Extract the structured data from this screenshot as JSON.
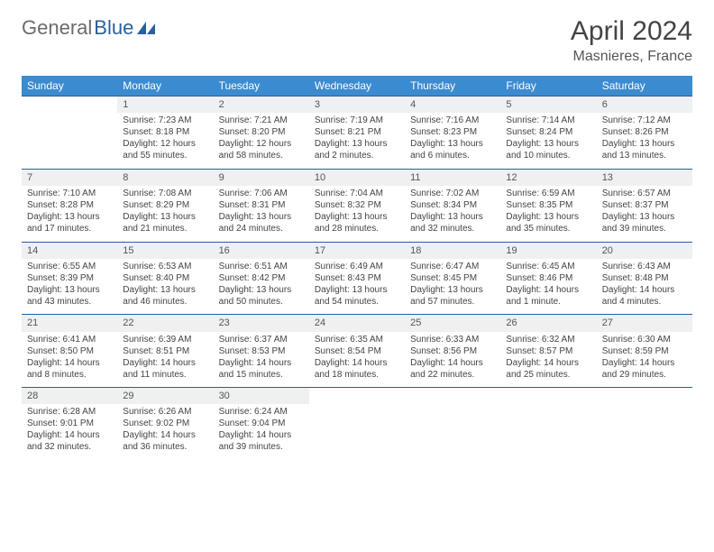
{
  "brand": {
    "part1": "General",
    "part2": "Blue"
  },
  "title": "April 2024",
  "location": "Masnieres, France",
  "colors": {
    "header_bg": "#3b8bd0",
    "header_text": "#ffffff",
    "daynum_bg": "#eef0f2",
    "row_border": "#2a609e",
    "logo_gray": "#6b6b6b",
    "logo_blue": "#2a609e"
  },
  "day_headers": [
    "Sunday",
    "Monday",
    "Tuesday",
    "Wednesday",
    "Thursday",
    "Friday",
    "Saturday"
  ],
  "weeks": [
    {
      "nums": [
        "",
        "1",
        "2",
        "3",
        "4",
        "5",
        "6"
      ],
      "cells": [
        null,
        {
          "sunrise": "Sunrise: 7:23 AM",
          "sunset": "Sunset: 8:18 PM",
          "day1": "Daylight: 12 hours",
          "day2": "and 55 minutes."
        },
        {
          "sunrise": "Sunrise: 7:21 AM",
          "sunset": "Sunset: 8:20 PM",
          "day1": "Daylight: 12 hours",
          "day2": "and 58 minutes."
        },
        {
          "sunrise": "Sunrise: 7:19 AM",
          "sunset": "Sunset: 8:21 PM",
          "day1": "Daylight: 13 hours",
          "day2": "and 2 minutes."
        },
        {
          "sunrise": "Sunrise: 7:16 AM",
          "sunset": "Sunset: 8:23 PM",
          "day1": "Daylight: 13 hours",
          "day2": "and 6 minutes."
        },
        {
          "sunrise": "Sunrise: 7:14 AM",
          "sunset": "Sunset: 8:24 PM",
          "day1": "Daylight: 13 hours",
          "day2": "and 10 minutes."
        },
        {
          "sunrise": "Sunrise: 7:12 AM",
          "sunset": "Sunset: 8:26 PM",
          "day1": "Daylight: 13 hours",
          "day2": "and 13 minutes."
        }
      ]
    },
    {
      "nums": [
        "7",
        "8",
        "9",
        "10",
        "11",
        "12",
        "13"
      ],
      "cells": [
        {
          "sunrise": "Sunrise: 7:10 AM",
          "sunset": "Sunset: 8:28 PM",
          "day1": "Daylight: 13 hours",
          "day2": "and 17 minutes."
        },
        {
          "sunrise": "Sunrise: 7:08 AM",
          "sunset": "Sunset: 8:29 PM",
          "day1": "Daylight: 13 hours",
          "day2": "and 21 minutes."
        },
        {
          "sunrise": "Sunrise: 7:06 AM",
          "sunset": "Sunset: 8:31 PM",
          "day1": "Daylight: 13 hours",
          "day2": "and 24 minutes."
        },
        {
          "sunrise": "Sunrise: 7:04 AM",
          "sunset": "Sunset: 8:32 PM",
          "day1": "Daylight: 13 hours",
          "day2": "and 28 minutes."
        },
        {
          "sunrise": "Sunrise: 7:02 AM",
          "sunset": "Sunset: 8:34 PM",
          "day1": "Daylight: 13 hours",
          "day2": "and 32 minutes."
        },
        {
          "sunrise": "Sunrise: 6:59 AM",
          "sunset": "Sunset: 8:35 PM",
          "day1": "Daylight: 13 hours",
          "day2": "and 35 minutes."
        },
        {
          "sunrise": "Sunrise: 6:57 AM",
          "sunset": "Sunset: 8:37 PM",
          "day1": "Daylight: 13 hours",
          "day2": "and 39 minutes."
        }
      ]
    },
    {
      "nums": [
        "14",
        "15",
        "16",
        "17",
        "18",
        "19",
        "20"
      ],
      "cells": [
        {
          "sunrise": "Sunrise: 6:55 AM",
          "sunset": "Sunset: 8:39 PM",
          "day1": "Daylight: 13 hours",
          "day2": "and 43 minutes."
        },
        {
          "sunrise": "Sunrise: 6:53 AM",
          "sunset": "Sunset: 8:40 PM",
          "day1": "Daylight: 13 hours",
          "day2": "and 46 minutes."
        },
        {
          "sunrise": "Sunrise: 6:51 AM",
          "sunset": "Sunset: 8:42 PM",
          "day1": "Daylight: 13 hours",
          "day2": "and 50 minutes."
        },
        {
          "sunrise": "Sunrise: 6:49 AM",
          "sunset": "Sunset: 8:43 PM",
          "day1": "Daylight: 13 hours",
          "day2": "and 54 minutes."
        },
        {
          "sunrise": "Sunrise: 6:47 AM",
          "sunset": "Sunset: 8:45 PM",
          "day1": "Daylight: 13 hours",
          "day2": "and 57 minutes."
        },
        {
          "sunrise": "Sunrise: 6:45 AM",
          "sunset": "Sunset: 8:46 PM",
          "day1": "Daylight: 14 hours",
          "day2": "and 1 minute."
        },
        {
          "sunrise": "Sunrise: 6:43 AM",
          "sunset": "Sunset: 8:48 PM",
          "day1": "Daylight: 14 hours",
          "day2": "and 4 minutes."
        }
      ]
    },
    {
      "nums": [
        "21",
        "22",
        "23",
        "24",
        "25",
        "26",
        "27"
      ],
      "cells": [
        {
          "sunrise": "Sunrise: 6:41 AM",
          "sunset": "Sunset: 8:50 PM",
          "day1": "Daylight: 14 hours",
          "day2": "and 8 minutes."
        },
        {
          "sunrise": "Sunrise: 6:39 AM",
          "sunset": "Sunset: 8:51 PM",
          "day1": "Daylight: 14 hours",
          "day2": "and 11 minutes."
        },
        {
          "sunrise": "Sunrise: 6:37 AM",
          "sunset": "Sunset: 8:53 PM",
          "day1": "Daylight: 14 hours",
          "day2": "and 15 minutes."
        },
        {
          "sunrise": "Sunrise: 6:35 AM",
          "sunset": "Sunset: 8:54 PM",
          "day1": "Daylight: 14 hours",
          "day2": "and 18 minutes."
        },
        {
          "sunrise": "Sunrise: 6:33 AM",
          "sunset": "Sunset: 8:56 PM",
          "day1": "Daylight: 14 hours",
          "day2": "and 22 minutes."
        },
        {
          "sunrise": "Sunrise: 6:32 AM",
          "sunset": "Sunset: 8:57 PM",
          "day1": "Daylight: 14 hours",
          "day2": "and 25 minutes."
        },
        {
          "sunrise": "Sunrise: 6:30 AM",
          "sunset": "Sunset: 8:59 PM",
          "day1": "Daylight: 14 hours",
          "day2": "and 29 minutes."
        }
      ]
    },
    {
      "nums": [
        "28",
        "29",
        "30",
        "",
        "",
        "",
        ""
      ],
      "cells": [
        {
          "sunrise": "Sunrise: 6:28 AM",
          "sunset": "Sunset: 9:01 PM",
          "day1": "Daylight: 14 hours",
          "day2": "and 32 minutes."
        },
        {
          "sunrise": "Sunrise: 6:26 AM",
          "sunset": "Sunset: 9:02 PM",
          "day1": "Daylight: 14 hours",
          "day2": "and 36 minutes."
        },
        {
          "sunrise": "Sunrise: 6:24 AM",
          "sunset": "Sunset: 9:04 PM",
          "day1": "Daylight: 14 hours",
          "day2": "and 39 minutes."
        },
        null,
        null,
        null,
        null
      ]
    }
  ]
}
